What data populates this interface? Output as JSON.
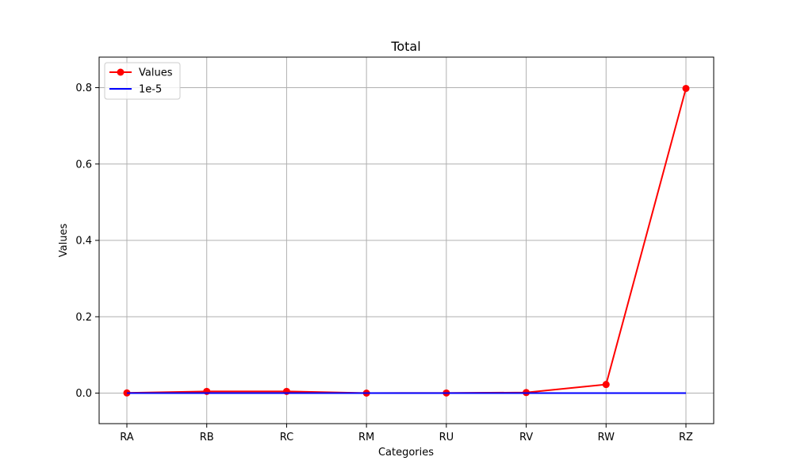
{
  "chart_data": {
    "type": "line",
    "title": "Total",
    "xlabel": "Categories",
    "ylabel": "Values",
    "categories": [
      "RA",
      "RB",
      "RC",
      "RM",
      "RU",
      "RV",
      "RW",
      "RZ"
    ],
    "ylim": [
      -0.08,
      0.88
    ],
    "yticks": [
      0.0,
      0.2,
      0.4,
      0.6,
      0.8
    ],
    "ytick_labels": [
      "0.0",
      "0.2",
      "0.4",
      "0.6",
      "0.8"
    ],
    "grid": true,
    "legend_position": "top-left",
    "series": [
      {
        "name": "Values",
        "color": "#ff0000",
        "marker": "circle",
        "values": [
          0.0005,
          0.0045,
          0.0045,
          0.0,
          0.0003,
          0.0015,
          0.0225,
          0.798
        ]
      },
      {
        "name": "1e-5",
        "color": "#0000ff",
        "marker": "none",
        "values": [
          1e-05,
          1e-05,
          1e-05,
          1e-05,
          1e-05,
          1e-05,
          1e-05,
          1e-05
        ]
      }
    ]
  }
}
